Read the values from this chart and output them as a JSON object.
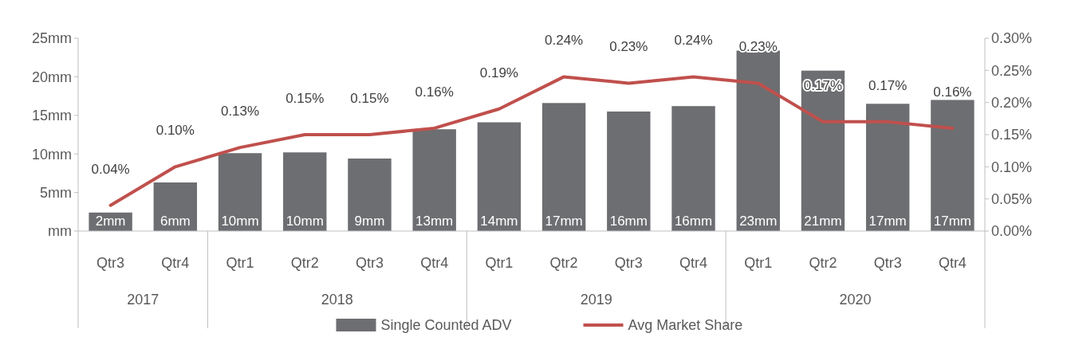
{
  "chart_data": {
    "type": "bar",
    "categories": [
      "Qtr3",
      "Qtr4",
      "Qtr1",
      "Qtr2",
      "Qtr3",
      "Qtr4",
      "Qtr1",
      "Qtr2",
      "Qtr3",
      "Qtr4",
      "Qtr1",
      "Qtr2",
      "Qtr3",
      "Qtr4"
    ],
    "series": [
      {
        "name": "Single Counted ADV",
        "color": "#6d6e71",
        "values": [
          2.4,
          6.3,
          10.1,
          10.2,
          9.4,
          13.2,
          14.1,
          16.6,
          15.5,
          16.2,
          23.4,
          20.8,
          16.5,
          17.0
        ],
        "value_labels": [
          "2mm",
          "6mm",
          "10mm",
          "10mm",
          "9mm",
          "13mm",
          "14mm",
          "17mm",
          "16mm",
          "16mm",
          "23mm",
          "21mm",
          "17mm",
          "17mm"
        ]
      },
      {
        "name": "Avg Market Share",
        "type": "line",
        "axis": "y2",
        "color": "#c0504d",
        "values": [
          0.04,
          0.1,
          0.13,
          0.15,
          0.15,
          0.16,
          0.19,
          0.24,
          0.23,
          0.24,
          0.23,
          0.17,
          0.17,
          0.16
        ],
        "value_labels": [
          "0.04%",
          "0.10%",
          "0.13%",
          "0.15%",
          "0.15%",
          "0.16%",
          "0.19%",
          "0.24%",
          "0.23%",
          "0.24%",
          "0.23%",
          "0.17%",
          "0.17%",
          "0.16%"
        ]
      }
    ],
    "ylim": [
      0,
      25
    ],
    "yticks": [
      {
        "value": 0,
        "label": "mm"
      },
      {
        "value": 5,
        "label": "5mm"
      },
      {
        "value": 10,
        "label": "10mm"
      },
      {
        "value": 15,
        "label": "15mm"
      },
      {
        "value": 20,
        "label": "20mm"
      },
      {
        "value": 25,
        "label": "25mm"
      }
    ],
    "y2lim": [
      0,
      0.3
    ],
    "y2ticks": [
      {
        "value": 0,
        "label": "0.00%"
      },
      {
        "value": 0.05,
        "label": "0.05%"
      },
      {
        "value": 0.1,
        "label": "0.10%"
      },
      {
        "value": 0.15,
        "label": "0.15%"
      },
      {
        "value": 0.2,
        "label": "0.20%"
      },
      {
        "value": 0.25,
        "label": "0.25%"
      },
      {
        "value": 0.3,
        "label": "0.30%"
      }
    ],
    "annotations": [
      "2017",
      "2018",
      "2019",
      "2020"
    ],
    "legend": "bottom",
    "grid": false
  }
}
